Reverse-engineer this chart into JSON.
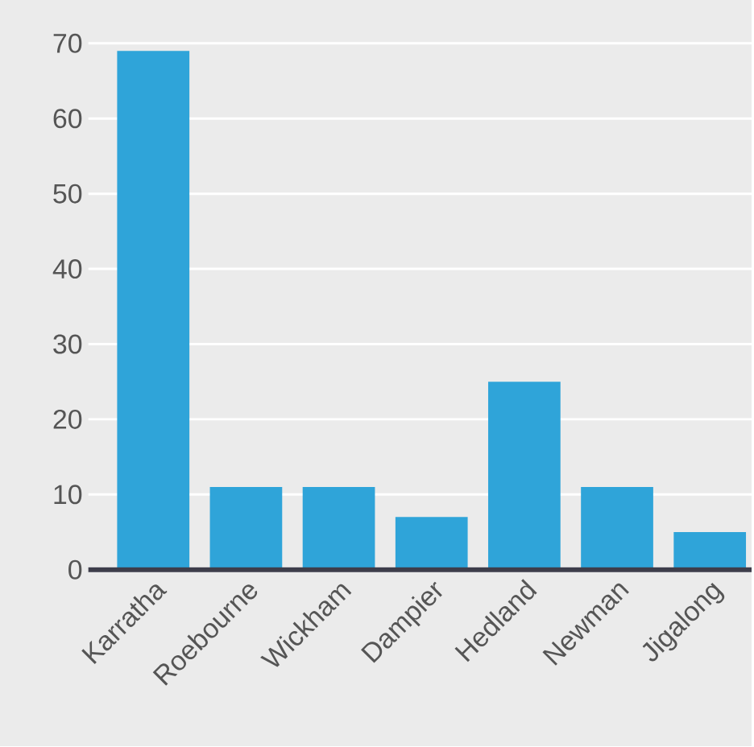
{
  "chart_data": {
    "type": "bar",
    "categories": [
      "Karratha",
      "Roebourne",
      "Wickham",
      "Dampier",
      "Hedland",
      "Newman",
      "Jigalong"
    ],
    "values": [
      69,
      11,
      11,
      7,
      25,
      11,
      5
    ],
    "color": "#2fa4d9",
    "ylim": [
      0,
      70
    ],
    "yticks": [
      0,
      10,
      20,
      30,
      40,
      50,
      60,
      70
    ],
    "grid": "y"
  }
}
